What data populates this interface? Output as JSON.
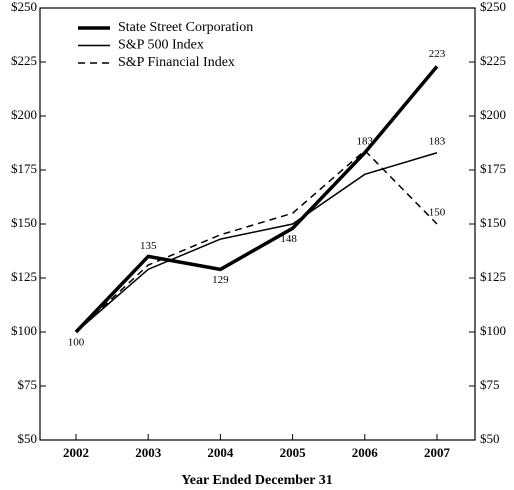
{
  "chart_data": {
    "type": "line",
    "x_label": "Year Ended December 31",
    "categories": [
      "2002",
      "2003",
      "2004",
      "2005",
      "2006",
      "2007"
    ],
    "ylim": [
      50,
      250
    ],
    "yticks": [
      {
        "value": 50,
        "label": "$50"
      },
      {
        "value": 75,
        "label": "$75"
      },
      {
        "value": 100,
        "label": "$100"
      },
      {
        "value": 125,
        "label": "$125"
      },
      {
        "value": 150,
        "label": "$150"
      },
      {
        "value": 175,
        "label": "$175"
      },
      {
        "value": 200,
        "label": "$200"
      },
      {
        "value": 225,
        "label": "$225"
      },
      {
        "value": 250,
        "label": "$250"
      }
    ],
    "ticks_both_sides": true,
    "legend": "upper left",
    "series": [
      {
        "name": "State Street Corporation",
        "color": "#000000",
        "line_width": 3.5,
        "dashed": false,
        "data_labels": "all",
        "values": [
          100,
          135,
          129,
          148,
          183,
          223
        ]
      },
      {
        "name": "S&P 500 Index",
        "color": "#000000",
        "line_width": 1.5,
        "dashed": false,
        "data_labels": "last",
        "values": [
          100,
          129,
          143,
          150,
          173,
          183
        ]
      },
      {
        "name": "S&P Financial Index",
        "color": "#000000",
        "line_width": 1.5,
        "dashed": true,
        "data_labels": "last",
        "values": [
          100,
          131,
          145,
          155,
          184,
          150
        ]
      }
    ]
  }
}
